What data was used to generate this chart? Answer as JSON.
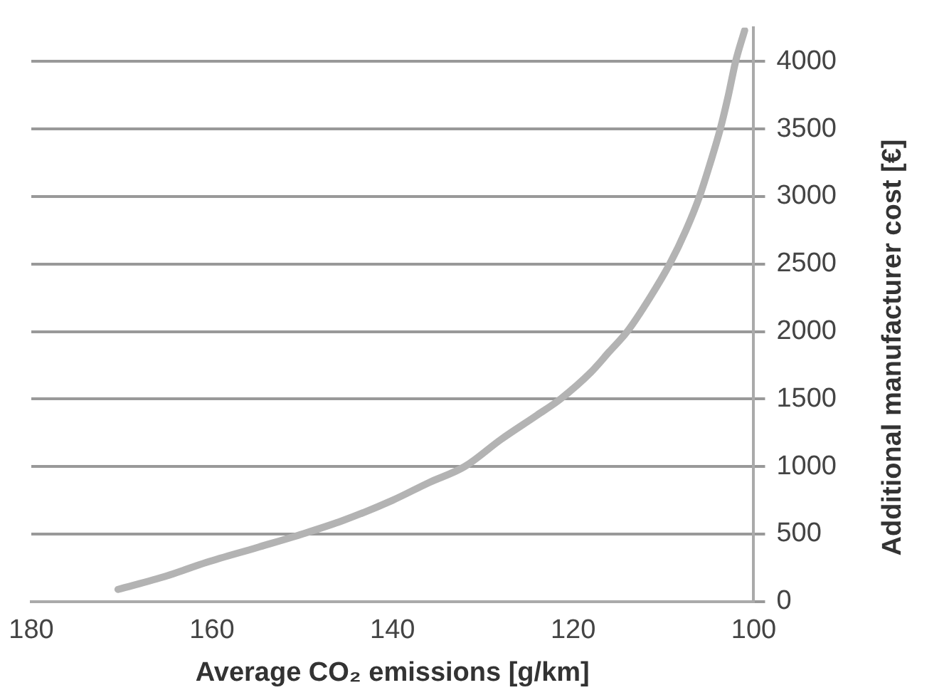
{
  "chart_data": {
    "type": "line",
    "xlabel": "Average CO₂ emissions [g/km]",
    "ylabel": "Additional manufacturer cost [€]",
    "x": [
      170.4,
      165,
      160.6,
      155,
      150,
      145.5,
      140,
      136,
      132,
      128,
      124,
      121.4,
      118,
      116,
      114,
      111.5,
      109.3,
      107.5,
      106,
      104.8,
      103.7,
      102.8,
      102,
      101
    ],
    "series": [
      {
        "color": "#b3b3b3",
        "values": [
          90,
          190,
          290,
          400,
          500,
          600,
          750,
          880,
          1000,
          1200,
          1380,
          1500,
          1700,
          1850,
          2000,
          2250,
          2500,
          2750,
          3000,
          3250,
          3500,
          3750,
          4000,
          4230
        ]
      }
    ],
    "xlim": [
      180,
      100
    ],
    "xticks": [
      180,
      160,
      140,
      120,
      100
    ],
    "ylim": [
      0,
      4250
    ],
    "yticks": [
      0,
      500,
      1000,
      1500,
      2000,
      2500,
      3000,
      3500,
      4000
    ],
    "grid": "y",
    "marker": "none",
    "line_style": "solid",
    "legend": false
  }
}
